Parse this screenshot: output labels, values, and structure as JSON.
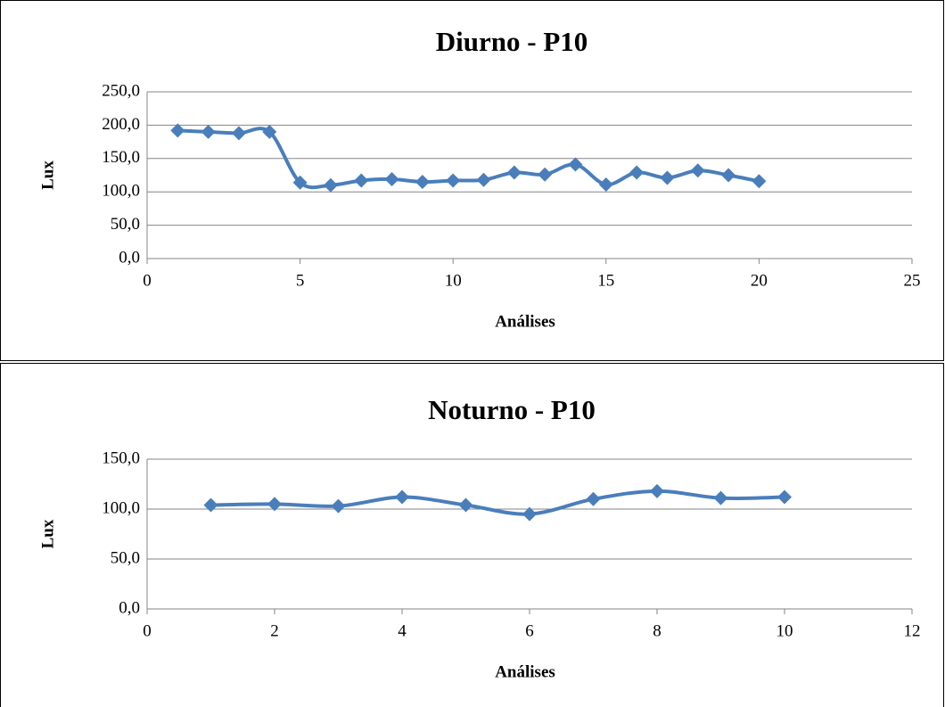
{
  "chart_data": [
    {
      "type": "line",
      "title": "Diurno - P10",
      "xlabel": "Análises",
      "ylabel": "Lux",
      "x": [
        1,
        2,
        3,
        4,
        5,
        6,
        7,
        8,
        9,
        10,
        11,
        12,
        13,
        14,
        15,
        16,
        17,
        18,
        19,
        20
      ],
      "series": [
        {
          "color": "#4a7ebb",
          "values": [
            192,
            190,
            188,
            190,
            114,
            110,
            117,
            119,
            115,
            117,
            118,
            129,
            126,
            141,
            111,
            129,
            121,
            132,
            125,
            116
          ]
        }
      ],
      "xlim": [
        0,
        25
      ],
      "xticks": [
        0,
        5,
        10,
        15,
        20,
        25
      ],
      "ylim": [
        0,
        250
      ],
      "yticks": [
        {
          "value": 0,
          "label": "0,0"
        },
        {
          "value": 50,
          "label": "50,0"
        },
        {
          "value": 100,
          "label": "100,0"
        },
        {
          "value": 150,
          "label": "150,0"
        },
        {
          "value": 200,
          "label": "200,0"
        },
        {
          "value": 250,
          "label": "250,0"
        }
      ],
      "grid": true
    },
    {
      "type": "line",
      "title": "Noturno - P10",
      "xlabel": "Análises",
      "ylabel": "Lux",
      "x": [
        1,
        2,
        3,
        4,
        5,
        6,
        7,
        8,
        9,
        10
      ],
      "series": [
        {
          "color": "#4a7ebb",
          "values": [
            104,
            105,
            103,
            112,
            104,
            95,
            110,
            118,
            111,
            112
          ]
        }
      ],
      "xlim": [
        0,
        12
      ],
      "xticks": [
        0,
        2,
        4,
        6,
        8,
        10,
        12
      ],
      "ylim": [
        0,
        150
      ],
      "yticks": [
        {
          "value": 0,
          "label": "0,0"
        },
        {
          "value": 50,
          "label": "50,0"
        },
        {
          "value": 100,
          "label": "100,0"
        },
        {
          "value": 150,
          "label": "150,0"
        }
      ],
      "grid": true
    }
  ]
}
